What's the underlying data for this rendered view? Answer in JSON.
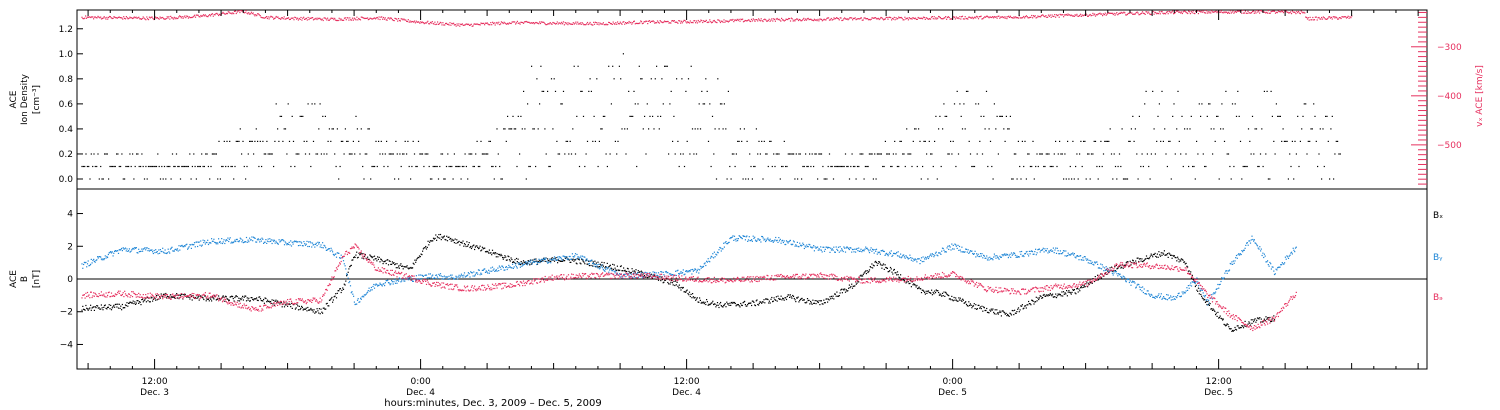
{
  "colors": {
    "black": "#000000",
    "pink": "#e6305f",
    "blue": "#1f86d6",
    "frame": "#000000"
  },
  "chart_data": [
    {
      "type": "scatter",
      "panel": "top",
      "left_axis": {
        "title_lines": [
          "ACE",
          "Ion Density"
        ],
        "unit": "[cm⁻³]",
        "ylim": [
          -0.08,
          1.35
        ],
        "ticks": [
          "0.0",
          "0.2",
          "0.4",
          "0.6",
          "0.8",
          "1.0",
          "1.2"
        ],
        "tick_values": [
          0.0,
          0.2,
          0.4,
          0.6,
          0.8,
          1.0,
          1.2
        ]
      },
      "right_axis": {
        "title": "vₓ ACE [km/s]",
        "ylim": [
          -590,
          -225
        ],
        "ticks": [
          "−300",
          "−400",
          "−500"
        ],
        "tick_values": [
          -300,
          -400,
          -500
        ],
        "color": "#e6305f"
      },
      "xlim_hours": [
        -3.5,
        57.4
      ],
      "series": [
        {
          "name": "",
          "color": "#000000",
          "quantity": "ion density",
          "x_hours": [
            -3.3,
            2.0,
            5.0,
            6.0,
            8.0,
            9.0,
            10.0,
            12.0,
            14.0,
            16.0,
            17.0,
            18.5,
            19.5,
            21.0,
            23.5,
            24.5,
            25.5,
            27.0,
            30.0,
            32.0,
            33.5,
            36.0,
            37.0,
            38.0,
            40.0,
            43.0,
            45.0,
            47.0,
            49.0,
            49.5,
            50.2,
            51.0,
            52.0,
            53.5
          ],
          "y_upper": [
            0.2,
            0.2,
            0.5,
            0.7,
            0.6,
            0.5,
            0.3,
            0.3,
            0.2,
            0.5,
            0.9,
            1.0,
            1.0,
            1.0,
            0.9,
            0.9,
            0.8,
            0.4,
            0.2,
            0.2,
            0.3,
            0.7,
            0.8,
            0.6,
            0.3,
            0.4,
            0.8,
            0.6,
            0.8,
            0.6,
            0.8,
            0.4,
            0.7,
            0.4
          ],
          "y_lower": [
            0.0,
            0.0,
            0.0,
            0.1,
            0.0,
            0.0,
            0.0,
            0.0,
            0.0,
            0.0,
            0.0,
            0.1,
            0.1,
            0.1,
            0.1,
            0.0,
            0.0,
            0.0,
            0.0,
            0.0,
            0.0,
            0.0,
            0.0,
            0.0,
            0.0,
            0.0,
            0.0,
            0.0,
            0.0,
            0.0,
            0.0,
            0.0,
            0.0,
            0.0
          ]
        },
        {
          "name": "",
          "color": "#e6305f",
          "quantity": "vₓ",
          "x_hours": [
            -3.3,
            0.0,
            2.0,
            4.0,
            5.0,
            6.0,
            8.0,
            10.0,
            12.0,
            14.0,
            16.0,
            18.0,
            20.0,
            22.0,
            24.0,
            26.0,
            28.0,
            30.0,
            32.0,
            34.0,
            36.0,
            38.0,
            40.0,
            42.0,
            44.0,
            46.0,
            48.0,
            50.0,
            51.8,
            52.0,
            54.0
          ],
          "y": [
            -240,
            -242,
            -238,
            -228,
            -240,
            -242,
            -244,
            -241,
            -250,
            -256,
            -251,
            -252,
            -253,
            -250,
            -249,
            -247,
            -245,
            -244,
            -243,
            -242,
            -241,
            -240,
            -238,
            -235,
            -232,
            -230,
            -229,
            -229,
            -230,
            -243,
            -240
          ]
        }
      ]
    },
    {
      "type": "scatter",
      "panel": "bottom",
      "left_axis": {
        "title_lines": [
          "ACE",
          "B"
        ],
        "unit": "[nT]",
        "ylim": [
          -5.5,
          5.5
        ],
        "ticks": [
          "−4",
          "−2",
          "0",
          "2",
          "4"
        ],
        "tick_values": [
          -4,
          -2,
          0,
          2,
          4
        ]
      },
      "zero_line": true,
      "xlim_hours": [
        -3.5,
        57.4
      ],
      "x_ticks": [
        {
          "hour": 0,
          "time": "12:00",
          "day": "Dec. 3"
        },
        {
          "hour": 12,
          "time": "0:00",
          "day": "Dec. 4"
        },
        {
          "hour": 24,
          "time": "12:00",
          "day": "Dec. 4"
        },
        {
          "hour": 36,
          "time": "0:00",
          "day": "Dec. 5"
        },
        {
          "hour": 48,
          "time": "12:00",
          "day": "Dec. 5"
        }
      ],
      "xlabel": "hours:minutes, Dec.  3, 2009 – Dec.  5, 2009",
      "series": [
        {
          "name": "Bₓ",
          "color": "#000000",
          "x_hours": [
            -3.3,
            -1.5,
            0.5,
            2.5,
            4.5,
            6.0,
            7.5,
            8.5,
            9.0,
            10.0,
            11.5,
            12.5,
            13.0,
            14.5,
            16.5,
            18.5,
            20.5,
            22.0,
            23.5,
            24.5,
            25.5,
            27.0,
            28.5,
            30.0,
            31.5,
            32.5,
            33.5,
            34.5,
            35.5,
            37.0,
            38.5,
            40.0,
            41.5,
            43.0,
            44.5,
            45.5,
            46.5,
            47.0,
            47.5,
            48.5,
            49.5,
            50.5
          ],
          "y": [
            -1.8,
            -1.7,
            -1.0,
            -1.2,
            -1.2,
            -1.6,
            -2.0,
            -0.5,
            1.5,
            1.2,
            0.6,
            2.5,
            2.6,
            1.9,
            1.0,
            1.2,
            0.8,
            0.3,
            -0.3,
            -1.3,
            -1.6,
            -1.5,
            -1.1,
            -1.5,
            -0.4,
            1.0,
            0.3,
            -0.7,
            -0.9,
            -1.7,
            -2.2,
            -1.1,
            -0.8,
            0.5,
            1.2,
            1.6,
            1.0,
            -0.6,
            -1.5,
            -3.1,
            -2.6,
            -2.4
          ]
        },
        {
          "name": "Bᵧ",
          "color": "#1f86d6",
          "x_hours": [
            -3.3,
            -1.5,
            0.5,
            2.5,
            4.5,
            6.0,
            7.5,
            8.5,
            9.0,
            10.0,
            11.5,
            12.5,
            13.5,
            15.0,
            17.0,
            19.0,
            21.0,
            23.0,
            24.5,
            26.0,
            28.0,
            30.0,
            32.0,
            33.5,
            34.5,
            36.0,
            37.5,
            39.0,
            40.5,
            42.0,
            43.5,
            45.0,
            46.0,
            47.0,
            47.5,
            48.5,
            49.5,
            50.5,
            51.5
          ],
          "y": [
            0.8,
            1.8,
            1.7,
            2.3,
            2.4,
            2.2,
            2.1,
            1.2,
            -1.5,
            -0.3,
            0.0,
            0.2,
            0.1,
            0.5,
            1.0,
            1.4,
            0.2,
            0.3,
            0.5,
            2.5,
            2.4,
            1.8,
            1.8,
            1.5,
            1.1,
            2.0,
            1.3,
            1.5,
            1.8,
            1.2,
            0.2,
            -1.0,
            -1.2,
            -0.1,
            -1.5,
            0.8,
            2.5,
            0.4,
            2.0
          ]
        },
        {
          "name": "Bₔ",
          "color": "#e6305f",
          "x_hours": [
            -3.3,
            -1.5,
            0.5,
            2.5,
            4.5,
            6.0,
            7.5,
            8.5,
            9.0,
            10.0,
            11.5,
            12.5,
            14.0,
            16.0,
            18.0,
            20.0,
            22.0,
            24.0,
            26.0,
            28.0,
            30.0,
            32.0,
            34.0,
            36.0,
            37.5,
            39.0,
            40.5,
            42.0,
            43.5,
            45.0,
            46.5,
            47.5,
            48.5,
            49.5,
            50.5,
            51.5
          ],
          "y": [
            -1.0,
            -0.9,
            -1.1,
            -1.0,
            -1.9,
            -1.4,
            -1.3,
            1.4,
            2.0,
            0.6,
            0.1,
            -0.3,
            -0.6,
            -0.4,
            0.1,
            0.2,
            0.2,
            0.0,
            -0.1,
            0.1,
            0.2,
            -0.1,
            0.0,
            0.3,
            -0.6,
            -0.8,
            -0.5,
            -0.3,
            0.9,
            0.8,
            0.6,
            -1.0,
            -2.2,
            -3.0,
            -2.4,
            -0.8
          ]
        }
      ]
    }
  ]
}
